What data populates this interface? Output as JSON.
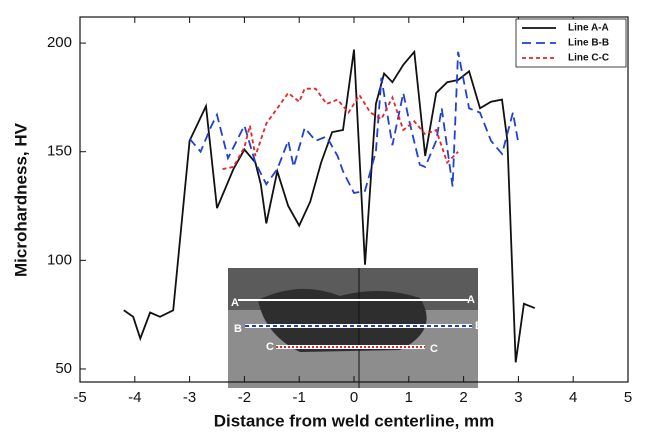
{
  "chart_data": {
    "type": "line",
    "x_label": "Distance from weld centerline, mm",
    "y_label": "Microhardness, HV",
    "xlim": [
      -5,
      5
    ],
    "ylim": [
      44,
      212
    ],
    "xticks": [
      -5,
      -4,
      -3,
      -2,
      -1,
      0,
      1,
      2,
      3,
      4,
      5
    ],
    "yticks": [
      50,
      100,
      150,
      200
    ],
    "legend": "upper right",
    "series": [
      {
        "name": "Line A-A",
        "color": "#111111",
        "dash": "solid",
        "x": [
          -4.2,
          -4.03,
          -3.9,
          -3.72,
          -3.54,
          -3.3,
          -3.0,
          -2.7,
          -2.5,
          -2.2,
          -2.0,
          -1.8,
          -1.7,
          -1.6,
          -1.4,
          -1.2,
          -1.0,
          -0.8,
          -0.6,
          -0.4,
          -0.2,
          0.0,
          0.2,
          0.4,
          0.55,
          0.7,
          0.9,
          1.1,
          1.3,
          1.5,
          1.7,
          1.9,
          2.1,
          2.3,
          2.5,
          2.7,
          2.8,
          2.95,
          3.1,
          3.3
        ],
        "values": [
          77,
          74,
          64,
          76,
          74,
          77,
          155,
          171,
          124,
          142,
          151,
          145,
          135,
          117,
          141,
          125,
          116,
          127,
          145,
          159,
          160,
          197,
          98,
          172,
          186,
          182,
          190,
          196,
          148,
          177,
          182,
          183,
          187,
          170,
          173,
          174,
          155,
          53,
          80,
          78
        ]
      },
      {
        "name": "Line B-B",
        "color": "#1f3fd6",
        "dash": "dashed",
        "x": [
          -3.0,
          -2.8,
          -2.6,
          -2.5,
          -2.3,
          -2.0,
          -1.8,
          -1.6,
          -1.4,
          -1.2,
          -1.1,
          -0.9,
          -0.7,
          -0.5,
          -0.3,
          -0.2,
          0.0,
          0.2,
          0.4,
          0.5,
          0.7,
          0.9,
          1.0,
          1.2,
          1.3,
          1.5,
          1.6,
          1.8,
          1.9,
          2.1,
          2.3,
          2.5,
          2.7,
          2.9,
          3.0
        ],
        "values": [
          156,
          150,
          162,
          167,
          147,
          162,
          145,
          135,
          142,
          155,
          143,
          161,
          155,
          157,
          148,
          141,
          131,
          132,
          150,
          184,
          153,
          177,
          165,
          144,
          143,
          155,
          170,
          134,
          196,
          170,
          168,
          155,
          149,
          168,
          154
        ]
      },
      {
        "name": "Line C-C",
        "color": "#e3262b",
        "dash": "dotted",
        "x": [
          -2.4,
          -2.2,
          -2.0,
          -1.9,
          -1.8,
          -1.6,
          -1.4,
          -1.2,
          -1.0,
          -0.9,
          -0.7,
          -0.5,
          -0.3,
          -0.1,
          0.1,
          0.3,
          0.5,
          0.7,
          0.9,
          1.1,
          1.3,
          1.5,
          1.7,
          1.9
        ],
        "values": [
          142,
          143,
          152,
          162,
          148,
          163,
          170,
          177,
          173,
          179,
          179,
          172,
          174,
          168,
          176,
          168,
          165,
          175,
          160,
          164,
          158,
          160,
          145,
          150
        ]
      }
    ],
    "annotations": [
      "A",
      "A",
      "B",
      "B",
      "C",
      "C"
    ]
  }
}
